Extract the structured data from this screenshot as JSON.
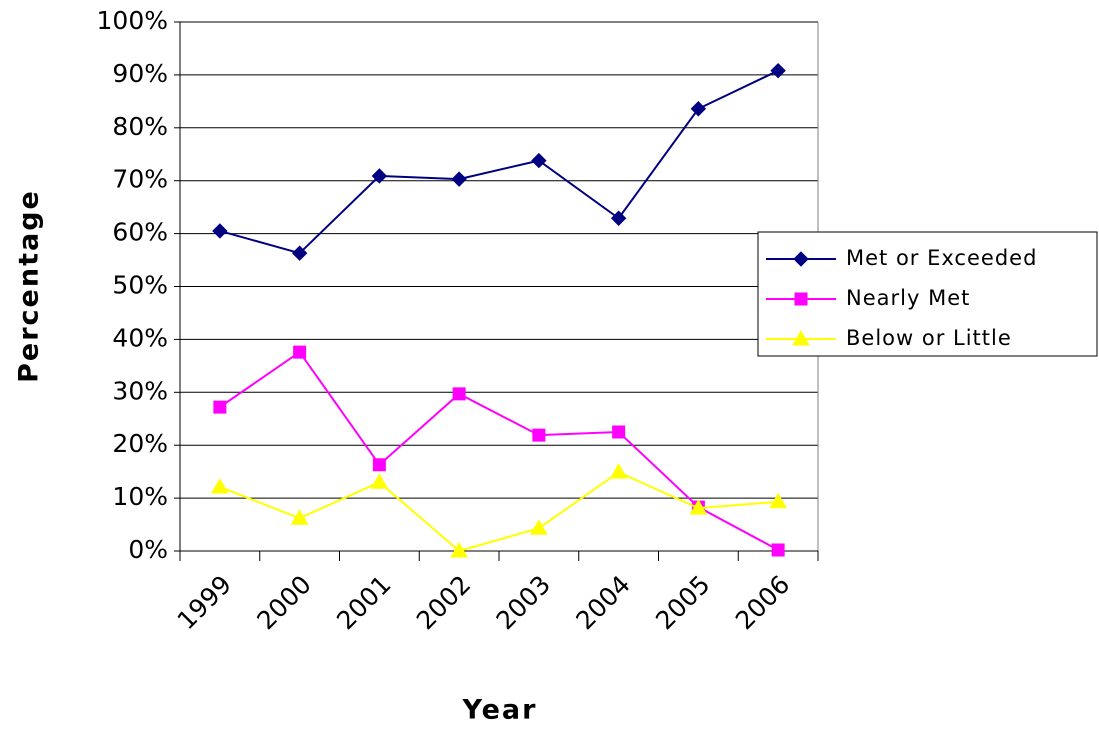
{
  "chart_data": {
    "type": "line",
    "x_label": "Year",
    "y_label": "Percentage",
    "categories": [
      "1999",
      "2000",
      "2001",
      "2002",
      "2003",
      "2004",
      "2005",
      "2006"
    ],
    "series": [
      {
        "name": "Met or Exceeded",
        "color": "#000080",
        "marker": "diamond",
        "values": [
          60.5,
          56.3,
          70.9,
          70.3,
          73.8,
          62.9,
          83.6,
          90.8
        ]
      },
      {
        "name": "Nearly Met",
        "color": "#ff00ff",
        "marker": "square",
        "values": [
          27.2,
          37.6,
          16.3,
          29.7,
          21.9,
          22.5,
          8.3,
          0.2
        ]
      },
      {
        "name": "Below or Little",
        "color": "#ffff00",
        "marker": "triangle",
        "values": [
          12.1,
          6.2,
          13.0,
          0,
          4.3,
          14.9,
          8.1,
          9.3
        ]
      }
    ],
    "ylim": [
      0,
      100
    ],
    "yticks": [
      {
        "value": 0,
        "label": "0%"
      },
      {
        "value": 10,
        "label": "10%"
      },
      {
        "value": 20,
        "label": "20%"
      },
      {
        "value": 30,
        "label": "30%"
      },
      {
        "value": 40,
        "label": "40%"
      },
      {
        "value": 50,
        "label": "50%"
      },
      {
        "value": 60,
        "label": "60%"
      },
      {
        "value": 70,
        "label": "70%"
      },
      {
        "value": 80,
        "label": "80%"
      },
      {
        "value": 90,
        "label": "90%"
      },
      {
        "value": 100,
        "label": "100%"
      }
    ],
    "grid": true,
    "legend": "right"
  }
}
